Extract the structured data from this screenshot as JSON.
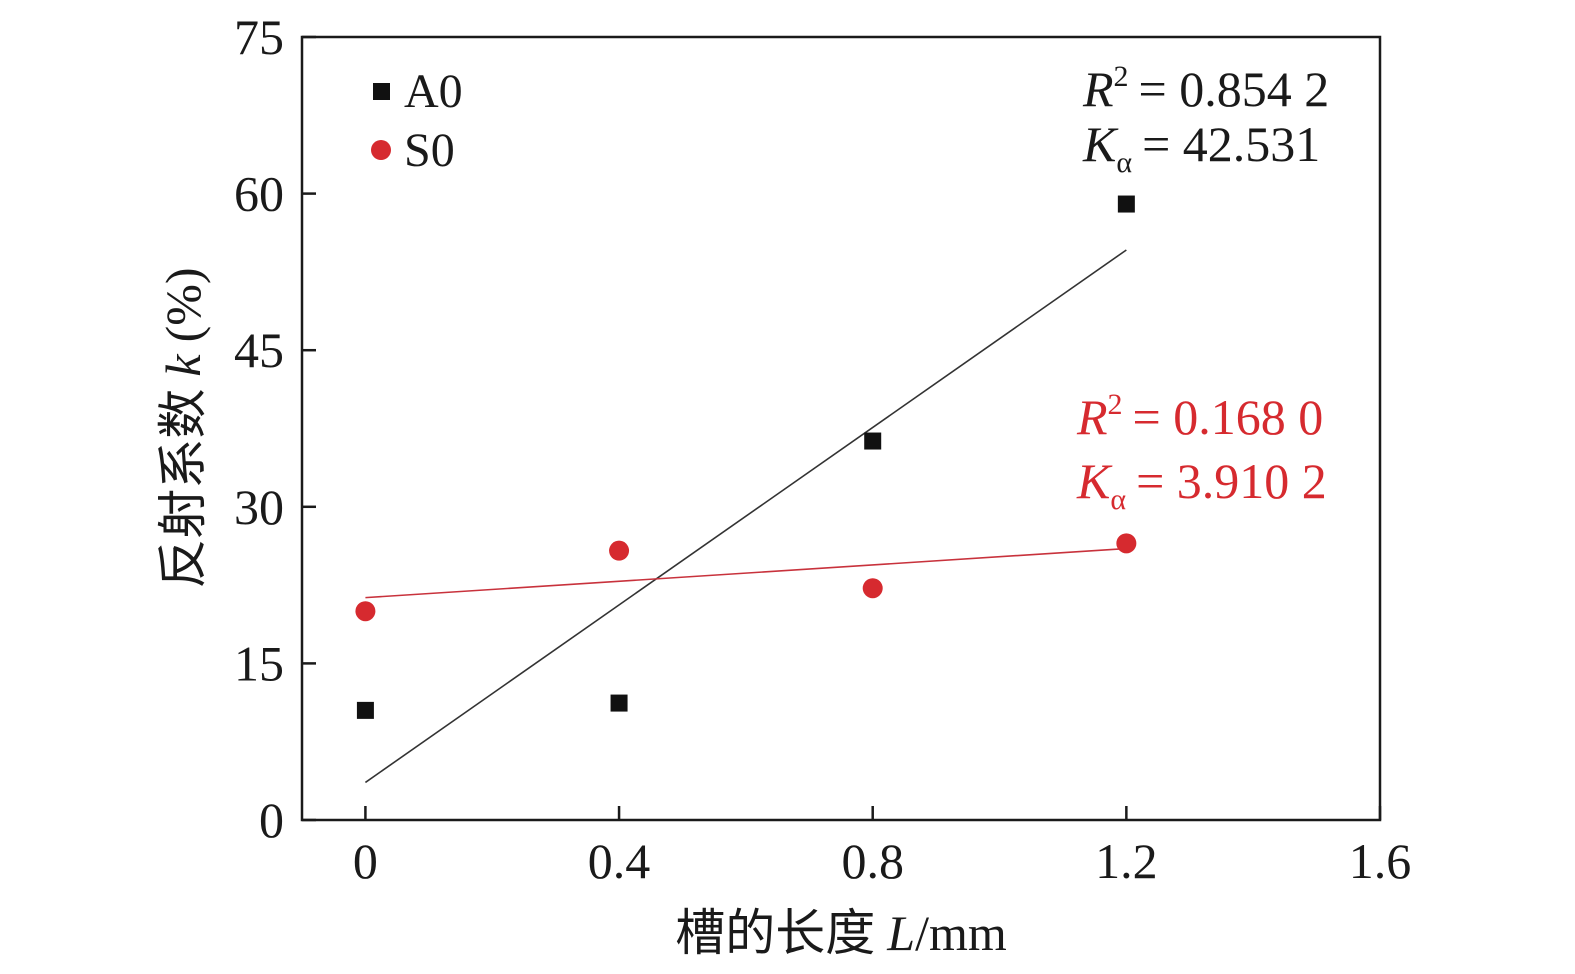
{
  "chart_data": {
    "type": "scatter",
    "xlabel_main": "槽的长度",
    "xlabel_var": "L",
    "xlabel_unit": "/mm",
    "ylabel_main": "反射系数",
    "ylabel_var": "k",
    "ylabel_unit": "(%)",
    "xlim": [
      -0.1,
      1.6
    ],
    "ylim": [
      0,
      75
    ],
    "xticks": [
      0,
      0.4,
      0.8,
      1.2,
      1.6
    ],
    "xtick_labels": [
      "0",
      "0.4",
      "0.8",
      "1.2",
      "1.6"
    ],
    "yticks": [
      0,
      15,
      30,
      45,
      60,
      75
    ],
    "ytick_labels": [
      "0",
      "15",
      "30",
      "45",
      "60",
      "75"
    ],
    "legend_position": "top-left",
    "series": [
      {
        "name": "A0",
        "marker": "square",
        "color": "#111111",
        "x": [
          0,
          0.4,
          0.8,
          1.2
        ],
        "y": [
          10.5,
          11.2,
          36.3,
          59.0
        ],
        "fit": {
          "x": [
            0,
            1.2
          ],
          "y": [
            3.6,
            54.6
          ],
          "color": "#333333"
        },
        "annotation": {
          "r2_symbol": "R",
          "r2_exp": "2",
          "r2_value": "= 0.854 2",
          "k_symbol": "K",
          "k_sub": "α",
          "k_value": "= 42.531"
        }
      },
      {
        "name": "S0",
        "marker": "circle",
        "color": "#d62a2f",
        "x": [
          0,
          0.4,
          0.8,
          1.2
        ],
        "y": [
          20.0,
          25.8,
          22.2,
          26.5
        ],
        "fit": {
          "x": [
            0,
            1.2
          ],
          "y": [
            21.3,
            26.0
          ],
          "color": "#c8323c"
        },
        "annotation": {
          "r2_symbol": "R",
          "r2_exp": "2",
          "r2_value": "= 0.168 0",
          "k_symbol": "K",
          "k_sub": "α",
          "k_value": "= 3.910 2"
        }
      }
    ]
  }
}
